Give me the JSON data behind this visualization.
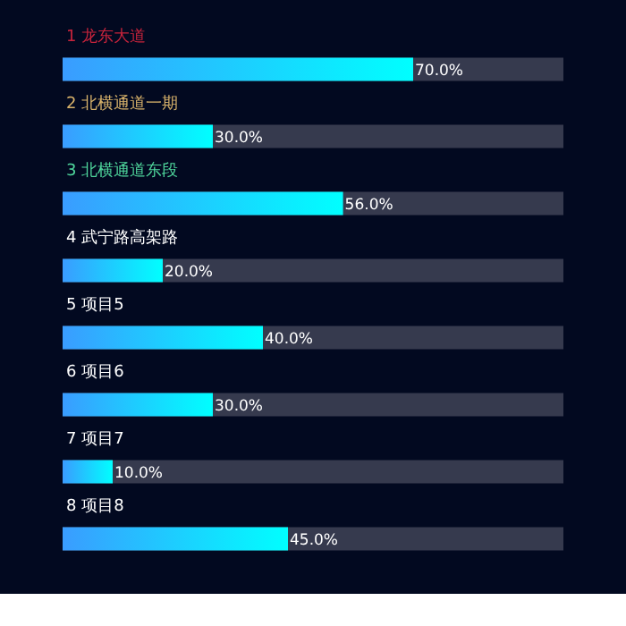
{
  "chart_data": {
    "type": "bar",
    "orientation": "horizontal",
    "categories": [
      "1 龙东大道",
      "2 北横通道一期",
      "3 北横通道东段",
      "4 武宁路高架路",
      "5 项目5",
      "6 项目6",
      "7 项目7",
      "8 项目8"
    ],
    "values": [
      70,
      30,
      56,
      20,
      40,
      30,
      10,
      45
    ],
    "value_labels": [
      "70.0%",
      "30.0%",
      "56.0%",
      "20.0%",
      "40.0%",
      "30.0%",
      "10.0%",
      "45.0%"
    ],
    "color": "#00ffff",
    "xlim": [
      0,
      100
    ],
    "tick_labels": false
  }
}
